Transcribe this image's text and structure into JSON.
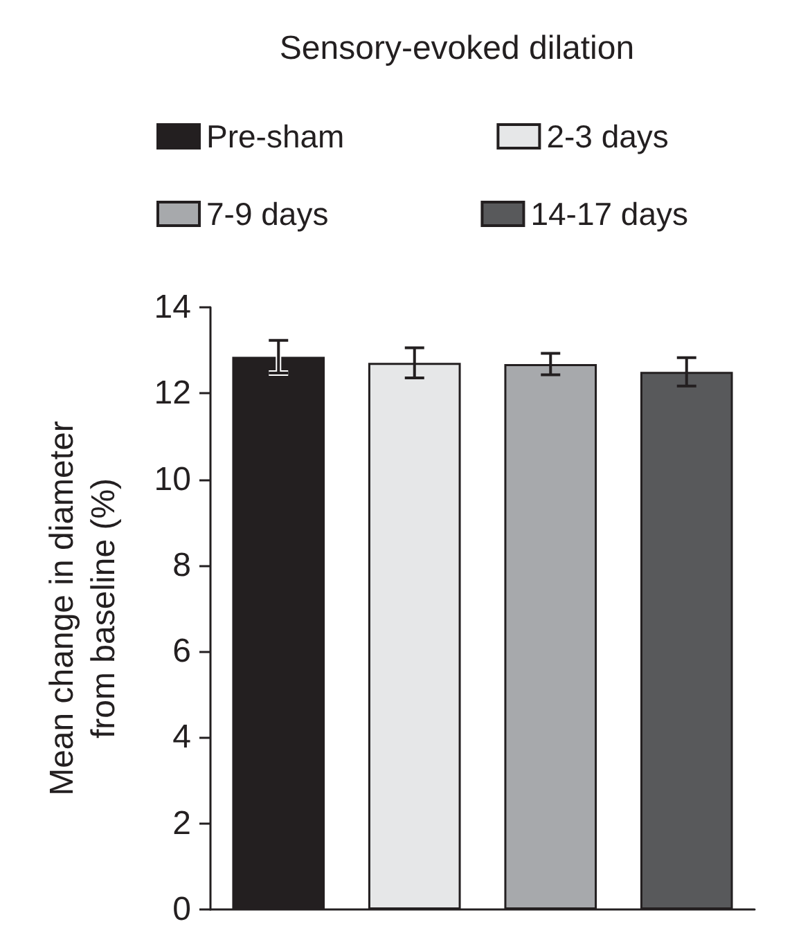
{
  "chart_data": {
    "type": "bar",
    "title": "Sensory-evoked dilation",
    "ylabel": "Mean change in diameter\nfrom baseline (%)",
    "categories": [
      null,
      null,
      null,
      null
    ],
    "series": [
      {
        "name": "Pre-sham",
        "color": "#231f20",
        "values": [
          12.85,
          null,
          null,
          null
        ],
        "errors": [
          0.38,
          null,
          null,
          null
        ]
      },
      {
        "name": "2-3 days",
        "color": "#e6e7e8",
        "values": [
          null,
          12.71,
          null,
          null
        ],
        "errors": [
          null,
          0.35,
          null,
          null
        ]
      },
      {
        "name": "7-9 days",
        "color": "#a7a9ac",
        "values": [
          null,
          null,
          12.68,
          null
        ],
        "errors": [
          null,
          null,
          0.25,
          null
        ]
      },
      {
        "name": "14-17 days",
        "color": "#58595b",
        "values": [
          null,
          null,
          null,
          12.5
        ],
        "errors": [
          null,
          null,
          null,
          0.33
        ]
      }
    ],
    "ylim": [
      0,
      14
    ],
    "yticks": [
      0,
      2,
      4,
      6,
      8,
      10,
      12,
      14
    ],
    "grid": false,
    "legend": "top"
  }
}
